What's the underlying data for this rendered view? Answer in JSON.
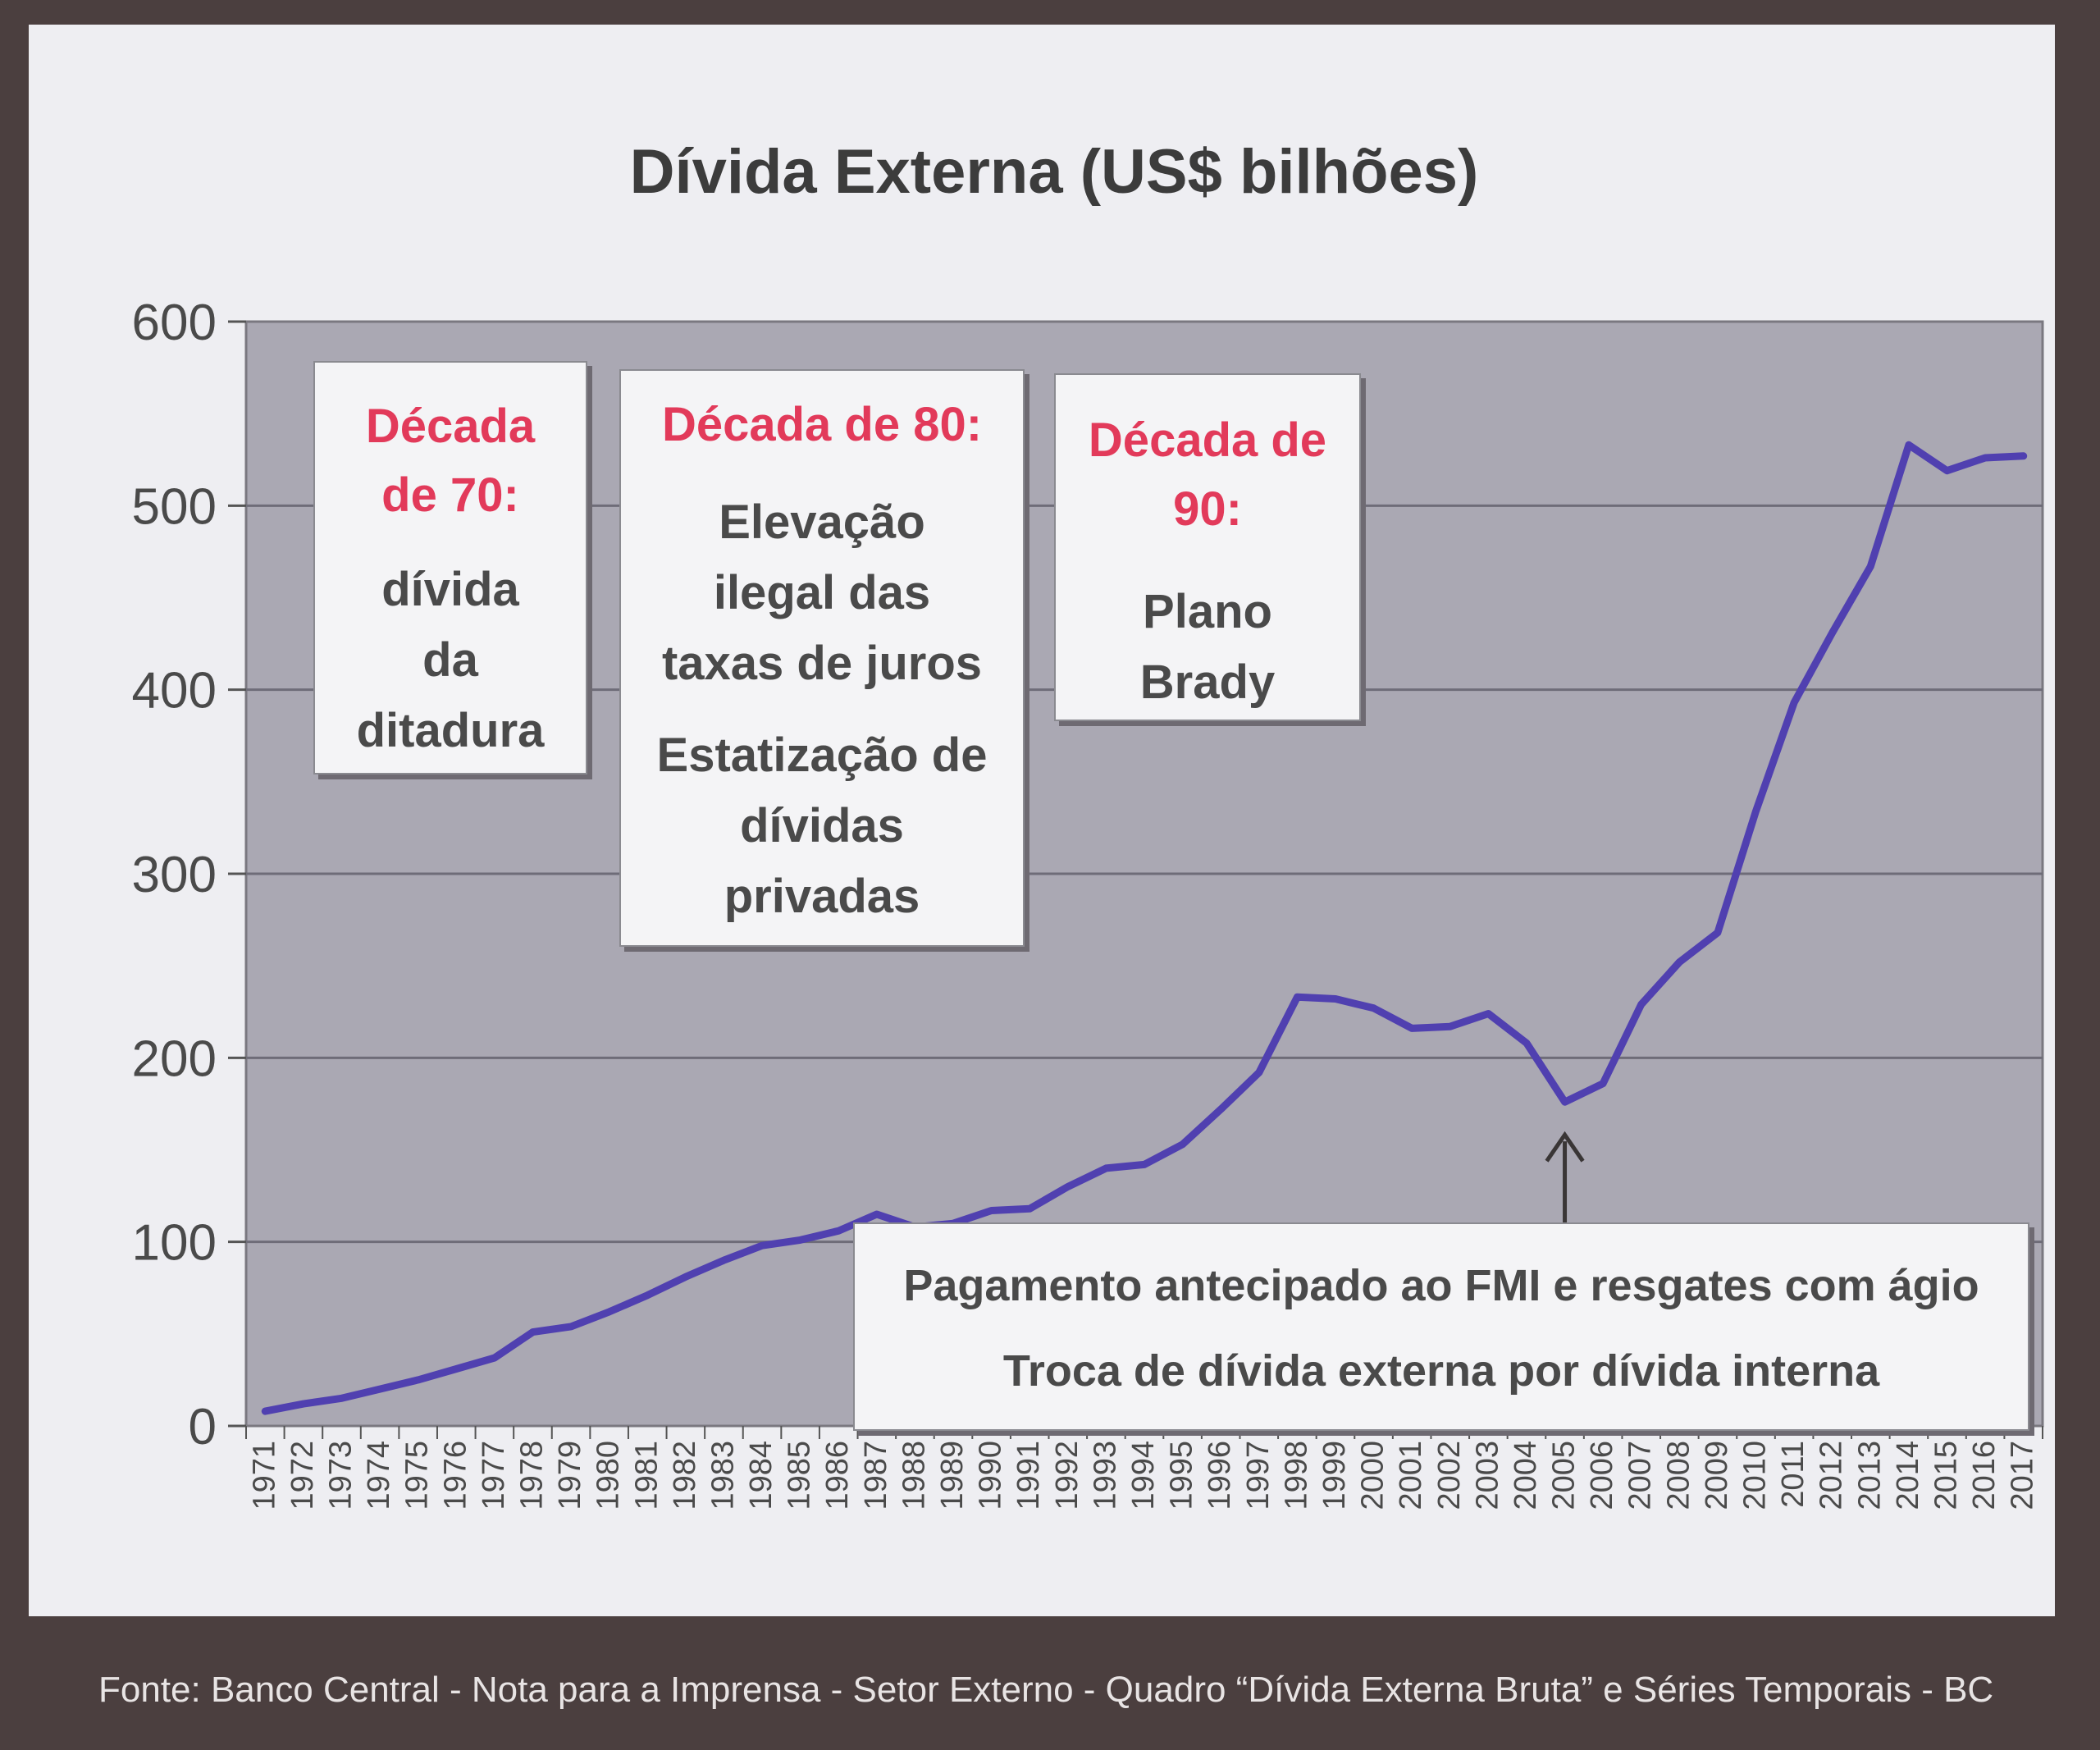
{
  "chart_data": {
    "type": "line",
    "title": "Dívida Externa (US$ bilhões)",
    "xlabel": "",
    "ylabel": "",
    "ylim": [
      0,
      600
    ],
    "yticks": [
      0,
      100,
      200,
      300,
      400,
      500,
      600
    ],
    "grid": true,
    "series_color": "#5040b0",
    "x": [
      "1971",
      "1972",
      "1973",
      "1974",
      "1975",
      "1976",
      "1977",
      "1978",
      "1979",
      "1980",
      "1981",
      "1982",
      "1983",
      "1984",
      "1985",
      "1986",
      "1987",
      "1988",
      "1989",
      "1990",
      "1991",
      "1992",
      "1993",
      "1994",
      "1995",
      "1996",
      "1997",
      "1998",
      "1999",
      "2000",
      "2001",
      "2002",
      "2003",
      "2004",
      "2005",
      "2006",
      "2007",
      "2008",
      "2009",
      "2010",
      "2011",
      "2012",
      "2013",
      "2014",
      "2015",
      "2016",
      "2017"
    ],
    "values": [
      8,
      12,
      15,
      20,
      25,
      31,
      37,
      51,
      54,
      62,
      71,
      81,
      90,
      98,
      101,
      106,
      115,
      108,
      110,
      117,
      118,
      130,
      140,
      142,
      153,
      172,
      192,
      233,
      232,
      227,
      216,
      217,
      224,
      208,
      176,
      186,
      229,
      252,
      268,
      334,
      393,
      431,
      467,
      533,
      519,
      526,
      527
    ]
  },
  "annotations": {
    "box70": {
      "head": [
        "Década",
        "de 70:"
      ],
      "body": [
        "dívida",
        "da",
        "ditadura"
      ]
    },
    "box80": {
      "head": [
        "Década de 80:"
      ],
      "body": [
        "Elevação",
        "ilegal das",
        "taxas de juros",
        "Estatização de",
        "dívidas",
        "privadas"
      ]
    },
    "box90": {
      "head": [
        "Década de",
        "90:"
      ],
      "body": [
        "Plano",
        "Brady"
      ]
    },
    "box2005": {
      "lines": [
        "Pagamento antecipado ao FMI e resgates com ágio",
        "Troca de dívida externa por dívida interna"
      ]
    }
  },
  "footer": "Fonte: Banco Central - Nota para a Imprensa - Setor Externo - Quadro “Dívida Externa Bruta” e Séries Temporais - BC"
}
